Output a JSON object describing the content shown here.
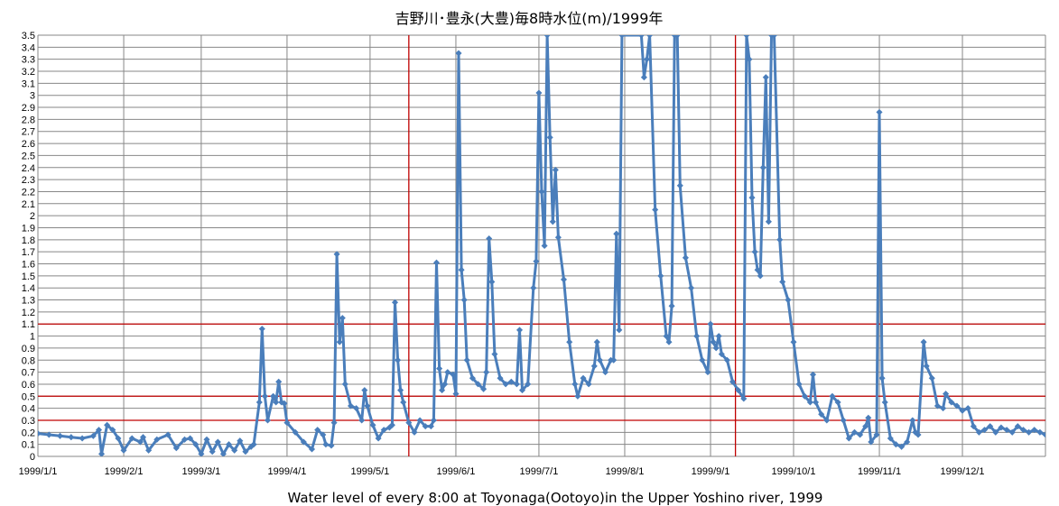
{
  "chart_data": {
    "type": "line",
    "title": "吉野川･豊永(大豊)毎8時水位(m)/1999年",
    "xlabel": "Water level of every 8:00 at Toyonaga(Ootoyo)in the Upper Yoshino river, 1999",
    "ylabel": "",
    "x_start": "1999-01-01",
    "x_end": "1999-12-31",
    "xlim": [
      "1999-01-01",
      "1999-12-31"
    ],
    "ylim": [
      0,
      3.5
    ],
    "y_ticks": [
      "0",
      "0.1",
      "0.2",
      "0.3",
      "0.4",
      "0.5",
      "0.6",
      "0.7",
      "0.8",
      "0.9",
      "1",
      "1.1",
      "1.2",
      "1.3",
      "1.4",
      "1.5",
      "1.6",
      "1.7",
      "1.8",
      "1.9",
      "2",
      "2.1",
      "2.2",
      "2.3",
      "2.4",
      "2.5",
      "2.6",
      "2.7",
      "2.8",
      "2.9",
      "3",
      "3.1",
      "3.2",
      "3.3",
      "3.4",
      "3.5"
    ],
    "x_ticks": [
      {
        "label": "1999/1/1",
        "date": "1999-01-01"
      },
      {
        "label": "1999/2/1",
        "date": "1999-02-01"
      },
      {
        "label": "1999/3/1",
        "date": "1999-03-01"
      },
      {
        "label": "1999/4/1",
        "date": "1999-04-01"
      },
      {
        "label": "1999/5/1",
        "date": "1999-05-01"
      },
      {
        "label": "1999/6/1",
        "date": "1999-06-01"
      },
      {
        "label": "1999/7/1",
        "date": "1999-07-01"
      },
      {
        "label": "1999/8/1",
        "date": "1999-08-01"
      },
      {
        "label": "1999/9/1",
        "date": "1999-09-01"
      },
      {
        "label": "1999/10/1",
        "date": "1999-10-01"
      },
      {
        "label": "1999/11/1",
        "date": "1999-11-01"
      },
      {
        "label": "1999/12/1",
        "date": "1999-12-01"
      }
    ],
    "grid": true,
    "legend": "none",
    "reference_lines_y": [
      0.3,
      0.5,
      1.1
    ],
    "reference_lines_x": [
      "1999-05-15",
      "1999-09-10"
    ],
    "colors": {
      "series": "#4a7ebb",
      "reference": "#c00000",
      "grid": "#878787"
    },
    "series": [
      {
        "values": [
          [
            "1999-01-01",
            0.19
          ],
          [
            "1999-01-05",
            0.18
          ],
          [
            "1999-01-09",
            0.17
          ],
          [
            "1999-01-13",
            0.16
          ],
          [
            "1999-01-17",
            0.15
          ],
          [
            "1999-01-21",
            0.17
          ],
          [
            "1999-01-23",
            0.22
          ],
          [
            "1999-01-24",
            0.02
          ],
          [
            "1999-01-26",
            0.26
          ],
          [
            "1999-01-28",
            0.22
          ],
          [
            "1999-01-30",
            0.15
          ],
          [
            "1999-02-01",
            0.05
          ],
          [
            "1999-02-04",
            0.15
          ],
          [
            "1999-02-07",
            0.12
          ],
          [
            "1999-02-08",
            0.16
          ],
          [
            "1999-02-10",
            0.05
          ],
          [
            "1999-02-13",
            0.14
          ],
          [
            "1999-02-17",
            0.18
          ],
          [
            "1999-02-20",
            0.07
          ],
          [
            "1999-02-23",
            0.14
          ],
          [
            "1999-02-25",
            0.15
          ],
          [
            "1999-02-27",
            0.1
          ],
          [
            "1999-03-01",
            0.02
          ],
          [
            "1999-03-03",
            0.14
          ],
          [
            "1999-03-05",
            0.04
          ],
          [
            "1999-03-07",
            0.12
          ],
          [
            "1999-03-09",
            0.02
          ],
          [
            "1999-03-11",
            0.1
          ],
          [
            "1999-03-13",
            0.05
          ],
          [
            "1999-03-15",
            0.13
          ],
          [
            "1999-03-17",
            0.04
          ],
          [
            "1999-03-19",
            0.08
          ],
          [
            "1999-03-20",
            0.1
          ],
          [
            "1999-03-22",
            0.45
          ],
          [
            "1999-03-23",
            1.06
          ],
          [
            "1999-03-24",
            0.5
          ],
          [
            "1999-03-25",
            0.3
          ],
          [
            "1999-03-27",
            0.5
          ],
          [
            "1999-03-28",
            0.45
          ],
          [
            "1999-03-29",
            0.62
          ],
          [
            "1999-03-30",
            0.45
          ],
          [
            "1999-03-31",
            0.44
          ],
          [
            "1999-04-01",
            0.28
          ],
          [
            "1999-04-04",
            0.2
          ],
          [
            "1999-04-07",
            0.12
          ],
          [
            "1999-04-10",
            0.06
          ],
          [
            "1999-04-12",
            0.22
          ],
          [
            "1999-04-14",
            0.18
          ],
          [
            "1999-04-15",
            0.1
          ],
          [
            "1999-04-17",
            0.09
          ],
          [
            "1999-04-18",
            0.28
          ],
          [
            "1999-04-19",
            1.68
          ],
          [
            "1999-04-20",
            0.95
          ],
          [
            "1999-04-21",
            1.15
          ],
          [
            "1999-04-22",
            0.6
          ],
          [
            "1999-04-24",
            0.42
          ],
          [
            "1999-04-26",
            0.4
          ],
          [
            "1999-04-28",
            0.3
          ],
          [
            "1999-04-29",
            0.55
          ],
          [
            "1999-04-30",
            0.42
          ],
          [
            "1999-05-02",
            0.26
          ],
          [
            "1999-05-04",
            0.15
          ],
          [
            "1999-05-06",
            0.22
          ],
          [
            "1999-05-08",
            0.24
          ],
          [
            "1999-05-09",
            0.26
          ],
          [
            "1999-05-10",
            1.28
          ],
          [
            "1999-05-11",
            0.8
          ],
          [
            "1999-05-12",
            0.55
          ],
          [
            "1999-05-13",
            0.45
          ],
          [
            "1999-05-15",
            0.28
          ],
          [
            "1999-05-17",
            0.2
          ],
          [
            "1999-05-19",
            0.3
          ],
          [
            "1999-05-21",
            0.25
          ],
          [
            "1999-05-23",
            0.25
          ],
          [
            "1999-05-24",
            0.3
          ],
          [
            "1999-05-25",
            1.61
          ],
          [
            "1999-05-26",
            0.73
          ],
          [
            "1999-05-27",
            0.55
          ],
          [
            "1999-05-28",
            0.6
          ],
          [
            "1999-05-29",
            0.7
          ],
          [
            "1999-05-31",
            0.68
          ],
          [
            "1999-06-01",
            0.52
          ],
          [
            "1999-06-02",
            3.35
          ],
          [
            "1999-06-03",
            1.55
          ],
          [
            "1999-06-04",
            1.3
          ],
          [
            "1999-06-05",
            0.8
          ],
          [
            "1999-06-07",
            0.65
          ],
          [
            "1999-06-09",
            0.6
          ],
          [
            "1999-06-11",
            0.56
          ],
          [
            "1999-06-12",
            0.7
          ],
          [
            "1999-06-13",
            1.81
          ],
          [
            "1999-06-14",
            1.45
          ],
          [
            "1999-06-15",
            0.85
          ],
          [
            "1999-06-17",
            0.65
          ],
          [
            "1999-06-19",
            0.6
          ],
          [
            "1999-06-21",
            0.62
          ],
          [
            "1999-06-23",
            0.6
          ],
          [
            "1999-06-24",
            1.05
          ],
          [
            "1999-06-25",
            0.55
          ],
          [
            "1999-06-27",
            0.6
          ],
          [
            "1999-06-29",
            1.4
          ],
          [
            "1999-06-30",
            1.62
          ],
          [
            "1999-07-01",
            3.02
          ],
          [
            "1999-07-02",
            2.2
          ],
          [
            "1999-07-03",
            1.75
          ],
          [
            "1999-07-04",
            3.5
          ],
          [
            "1999-07-05",
            2.65
          ],
          [
            "1999-07-06",
            1.95
          ],
          [
            "1999-07-07",
            2.38
          ],
          [
            "1999-07-08",
            1.82
          ],
          [
            "1999-07-10",
            1.47
          ],
          [
            "1999-07-12",
            0.95
          ],
          [
            "1999-07-14",
            0.6
          ],
          [
            "1999-07-15",
            0.5
          ],
          [
            "1999-07-17",
            0.65
          ],
          [
            "1999-07-19",
            0.6
          ],
          [
            "1999-07-21",
            0.75
          ],
          [
            "1999-07-22",
            0.95
          ],
          [
            "1999-07-23",
            0.8
          ],
          [
            "1999-07-25",
            0.7
          ],
          [
            "1999-07-27",
            0.8
          ],
          [
            "1999-07-28",
            0.8
          ],
          [
            "1999-07-29",
            1.85
          ],
          [
            "1999-07-30",
            1.05
          ],
          [
            "1999-07-31",
            3.5
          ],
          [
            "1999-08-07",
            3.5
          ],
          [
            "1999-08-08",
            3.15
          ],
          [
            "1999-08-09",
            3.3
          ],
          [
            "1999-08-10",
            3.5
          ],
          [
            "1999-08-12",
            2.05
          ],
          [
            "1999-08-14",
            1.5
          ],
          [
            "1999-08-16",
            1.0
          ],
          [
            "1999-08-17",
            0.95
          ],
          [
            "1999-08-18",
            1.25
          ],
          [
            "1999-08-19",
            3.5
          ],
          [
            "1999-08-20",
            3.5
          ],
          [
            "1999-08-21",
            2.25
          ],
          [
            "1999-08-23",
            1.65
          ],
          [
            "1999-08-25",
            1.4
          ],
          [
            "1999-08-27",
            1.0
          ],
          [
            "1999-08-29",
            0.8
          ],
          [
            "1999-08-31",
            0.7
          ],
          [
            "1999-09-01",
            1.1
          ],
          [
            "1999-09-02",
            0.95
          ],
          [
            "1999-09-03",
            0.9
          ],
          [
            "1999-09-04",
            1.0
          ],
          [
            "1999-09-05",
            0.85
          ],
          [
            "1999-09-07",
            0.8
          ],
          [
            "1999-09-09",
            0.62
          ],
          [
            "1999-09-11",
            0.55
          ],
          [
            "1999-09-13",
            0.48
          ],
          [
            "1999-09-14",
            3.5
          ],
          [
            "1999-09-15",
            3.3
          ],
          [
            "1999-09-16",
            2.15
          ],
          [
            "1999-09-17",
            1.7
          ],
          [
            "1999-09-18",
            1.55
          ],
          [
            "1999-09-19",
            1.5
          ],
          [
            "1999-09-20",
            2.4
          ],
          [
            "1999-09-21",
            3.15
          ],
          [
            "1999-09-22",
            1.95
          ],
          [
            "1999-09-23",
            3.5
          ],
          [
            "1999-09-24",
            3.5
          ],
          [
            "1999-09-26",
            1.8
          ],
          [
            "1999-09-27",
            1.45
          ],
          [
            "1999-09-29",
            1.3
          ],
          [
            "1999-10-01",
            0.95
          ],
          [
            "1999-10-03",
            0.6
          ],
          [
            "1999-10-05",
            0.5
          ],
          [
            "1999-10-07",
            0.45
          ],
          [
            "1999-10-08",
            0.68
          ],
          [
            "1999-10-09",
            0.45
          ],
          [
            "1999-10-11",
            0.35
          ],
          [
            "1999-10-13",
            0.3
          ],
          [
            "1999-10-15",
            0.5
          ],
          [
            "1999-10-17",
            0.45
          ],
          [
            "1999-10-19",
            0.3
          ],
          [
            "1999-10-21",
            0.15
          ],
          [
            "1999-10-23",
            0.2
          ],
          [
            "1999-10-25",
            0.18
          ],
          [
            "1999-10-27",
            0.25
          ],
          [
            "1999-10-28",
            0.32
          ],
          [
            "1999-10-29",
            0.12
          ],
          [
            "1999-10-31",
            0.18
          ],
          [
            "1999-11-01",
            2.86
          ],
          [
            "1999-11-02",
            0.65
          ],
          [
            "1999-11-03",
            0.45
          ],
          [
            "1999-11-05",
            0.15
          ],
          [
            "1999-11-07",
            0.1
          ],
          [
            "1999-11-09",
            0.08
          ],
          [
            "1999-11-11",
            0.12
          ],
          [
            "1999-11-13",
            0.3
          ],
          [
            "1999-11-14",
            0.2
          ],
          [
            "1999-11-15",
            0.18
          ],
          [
            "1999-11-17",
            0.95
          ],
          [
            "1999-11-18",
            0.75
          ],
          [
            "1999-11-20",
            0.65
          ],
          [
            "1999-11-22",
            0.42
          ],
          [
            "1999-11-24",
            0.4
          ],
          [
            "1999-11-25",
            0.52
          ],
          [
            "1999-11-27",
            0.45
          ],
          [
            "1999-11-29",
            0.42
          ],
          [
            "1999-12-01",
            0.38
          ],
          [
            "1999-12-03",
            0.4
          ],
          [
            "1999-12-05",
            0.25
          ],
          [
            "1999-12-07",
            0.2
          ],
          [
            "1999-12-09",
            0.22
          ],
          [
            "1999-12-11",
            0.25
          ],
          [
            "1999-12-13",
            0.2
          ],
          [
            "1999-12-15",
            0.24
          ],
          [
            "1999-12-17",
            0.22
          ],
          [
            "1999-12-19",
            0.2
          ],
          [
            "1999-12-21",
            0.25
          ],
          [
            "1999-12-23",
            0.22
          ],
          [
            "1999-12-25",
            0.2
          ],
          [
            "1999-12-27",
            0.22
          ],
          [
            "1999-12-29",
            0.2
          ],
          [
            "1999-12-31",
            0.18
          ]
        ]
      }
    ]
  }
}
